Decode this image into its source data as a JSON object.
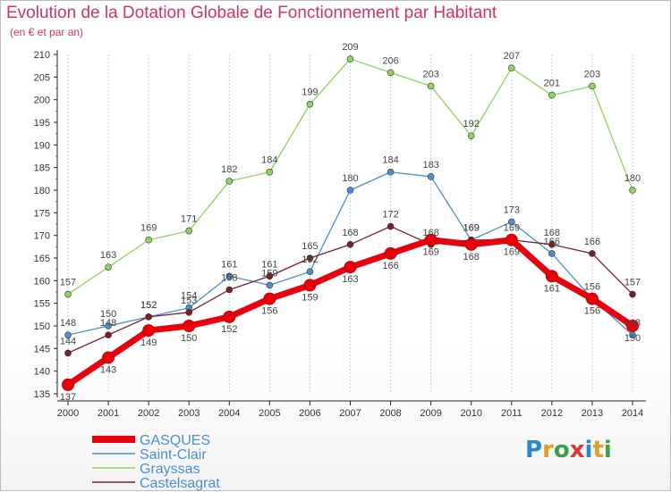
{
  "chart_data": {
    "type": "line",
    "title": "Evolution de la Dotation Globale de Fonctionnement par Habitant",
    "subtitle": "(en € et par an)",
    "xlabel": "",
    "ylabel": "",
    "x": [
      "2000",
      "2001",
      "2002",
      "2003",
      "2004",
      "2005",
      "2006",
      "2007",
      "2008",
      "2009",
      "2010",
      "2011",
      "2012",
      "2013",
      "2014"
    ],
    "ylim": [
      135,
      210
    ],
    "yticks": [
      135,
      140,
      145,
      150,
      155,
      160,
      165,
      170,
      175,
      180,
      185,
      190,
      195,
      200,
      205,
      210
    ],
    "grid": "vertical",
    "legend_position": "bottom-left",
    "series": [
      {
        "name": "GASQUES",
        "color": "#e8000c",
        "values": [
          137,
          143,
          149,
          150,
          152,
          156,
          159,
          163,
          166,
          169,
          168,
          169,
          161,
          156,
          150
        ]
      },
      {
        "name": "Saint-Clair",
        "color": "#4a8fcf",
        "values": [
          148,
          150,
          152,
          154,
          161,
          159,
          162,
          180,
          184,
          183,
          169,
          173,
          166,
          156,
          148
        ]
      },
      {
        "name": "Grayssas",
        "color": "#8ed45c",
        "values": [
          157,
          163,
          169,
          171,
          182,
          184,
          199,
          209,
          206,
          203,
          192,
          207,
          201,
          203,
          180
        ]
      },
      {
        "name": "Castelsagrat",
        "color": "#7a1f2a",
        "values": [
          144,
          148,
          152,
          153,
          158,
          161,
          165,
          168,
          172,
          168,
          169,
          169,
          168,
          166,
          157
        ]
      }
    ]
  },
  "logo": {
    "letters": [
      "P",
      "r",
      "o",
      "x",
      "i",
      "t",
      "i"
    ],
    "colors": [
      "#2a86d1",
      "#e0a020",
      "#3aa04a",
      "#d63a3a",
      "#2a86d1",
      "#e0a020",
      "#3aa04a"
    ]
  }
}
